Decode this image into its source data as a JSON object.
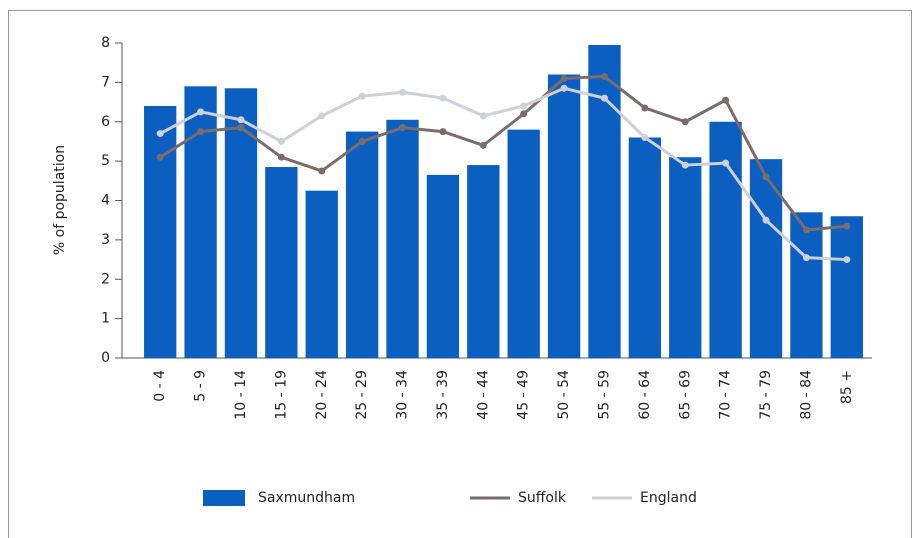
{
  "chart_data": {
    "type": "bar",
    "y_label": "% of population",
    "categories": [
      "0 - 4",
      "5 - 9",
      "10 - 14",
      "15 - 19",
      "20 - 24",
      "25 - 29",
      "30 - 34",
      "35 - 39",
      "40 - 44",
      "45 - 49",
      "50 - 54",
      "55 - 59",
      "60 - 64",
      "65 - 69",
      "70 - 74",
      "75 - 79",
      "80 - 84",
      "85 +"
    ],
    "series": [
      {
        "name": "Saxmundham",
        "type": "bar",
        "color": "#0a5fc0",
        "values": [
          6.4,
          6.9,
          6.85,
          4.85,
          4.25,
          5.75,
          6.05,
          4.65,
          4.9,
          5.8,
          7.2,
          7.95,
          5.6,
          5.1,
          6.0,
          5.05,
          3.7,
          3.6
        ]
      },
      {
        "name": "Suffolk",
        "type": "line",
        "color": "#7b6c6c",
        "values": [
          5.1,
          5.75,
          5.85,
          5.1,
          4.75,
          5.5,
          5.85,
          5.75,
          5.4,
          6.2,
          7.1,
          7.15,
          6.35,
          6.0,
          6.55,
          4.6,
          3.25,
          3.35
        ]
      },
      {
        "name": "England",
        "type": "line",
        "color": "#cfcfd6",
        "values": [
          5.7,
          6.25,
          6.05,
          5.5,
          6.15,
          6.65,
          6.75,
          6.6,
          6.15,
          6.4,
          6.85,
          6.6,
          5.6,
          4.9,
          4.95,
          3.5,
          2.55,
          2.5
        ]
      }
    ],
    "ylim": [
      0,
      8
    ],
    "yticks": [
      0,
      1,
      2,
      3,
      4,
      5,
      6,
      7,
      8
    ],
    "grid": false,
    "legend": "bottom"
  }
}
